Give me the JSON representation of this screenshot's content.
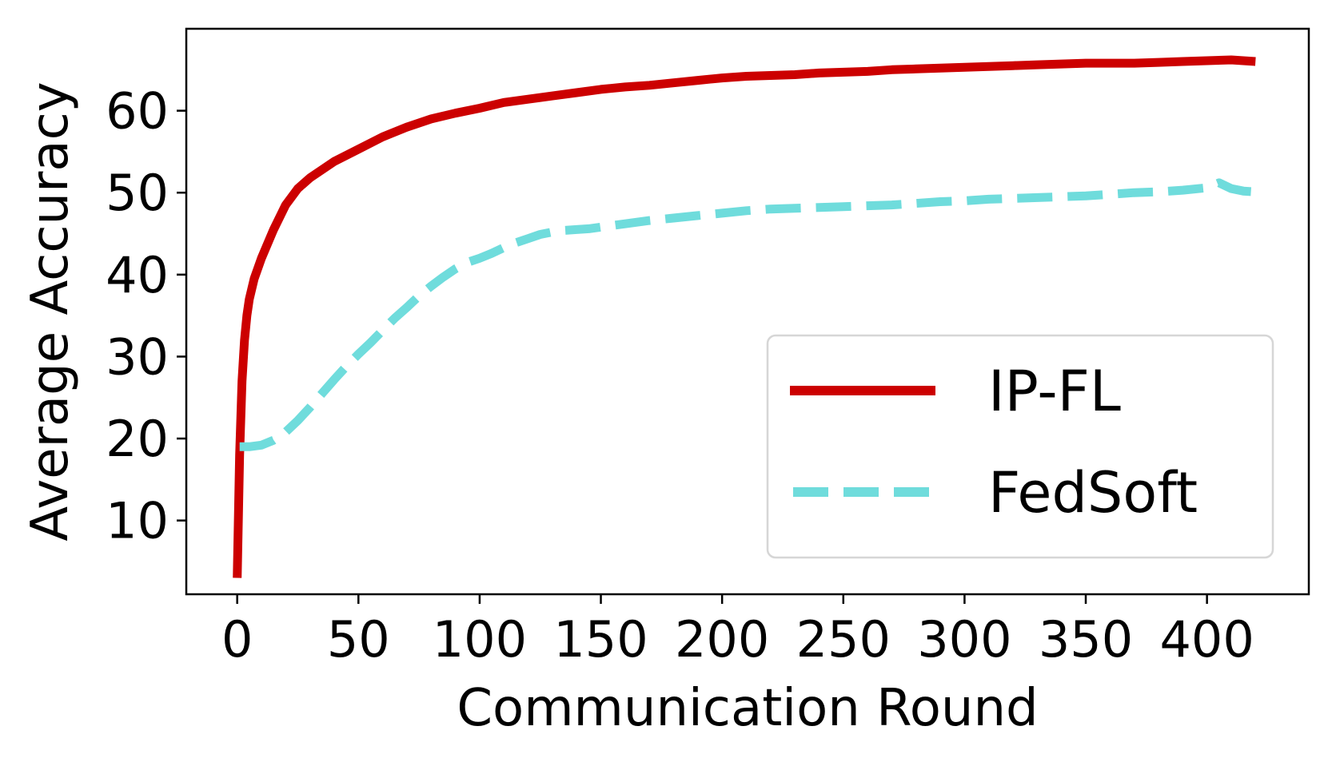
{
  "chart_data": {
    "type": "line",
    "title": "",
    "xlabel": "Communication Round",
    "ylabel": "Average Accuracy",
    "xlim": [
      -21,
      442
    ],
    "ylim": [
      1,
      70
    ],
    "xticks": [
      0,
      50,
      100,
      150,
      200,
      250,
      300,
      350,
      400
    ],
    "yticks": [
      10,
      20,
      30,
      40,
      50,
      60
    ],
    "grid": false,
    "legend_position": "lower-right",
    "series": [
      {
        "name": "IP-FL",
        "color": "#cc0000",
        "style": "solid",
        "x": [
          0,
          1,
          2,
          3,
          4,
          5,
          7,
          10,
          15,
          20,
          25,
          30,
          40,
          50,
          60,
          70,
          80,
          90,
          100,
          110,
          120,
          130,
          140,
          150,
          160,
          170,
          180,
          190,
          200,
          210,
          220,
          230,
          240,
          250,
          260,
          270,
          280,
          290,
          300,
          310,
          320,
          330,
          340,
          350,
          360,
          370,
          380,
          390,
          400,
          410,
          415,
          420
        ],
        "y": [
          3,
          18,
          27,
          32,
          35,
          37,
          39.5,
          42,
          45.5,
          48.5,
          50.5,
          51.8,
          53.8,
          55.3,
          56.8,
          58,
          59,
          59.7,
          60.3,
          61,
          61.4,
          61.8,
          62.2,
          62.6,
          62.9,
          63.1,
          63.4,
          63.7,
          64,
          64.2,
          64.3,
          64.4,
          64.6,
          64.7,
          64.8,
          65,
          65.1,
          65.2,
          65.3,
          65.4,
          65.5,
          65.6,
          65.7,
          65.8,
          65.8,
          65.8,
          65.9,
          66,
          66.1,
          66.2,
          66.1,
          66
        ]
      },
      {
        "name": "FedSoft",
        "color": "#6fdcdc",
        "style": "dashed",
        "x": [
          1,
          5,
          10,
          15,
          20,
          25,
          30,
          35,
          40,
          45,
          50,
          55,
          60,
          65,
          70,
          75,
          80,
          85,
          90,
          95,
          100,
          105,
          110,
          115,
          120,
          125,
          130,
          135,
          140,
          145,
          150,
          160,
          170,
          180,
          190,
          200,
          210,
          220,
          230,
          240,
          250,
          260,
          270,
          280,
          290,
          300,
          310,
          320,
          330,
          340,
          350,
          360,
          370,
          380,
          390,
          400,
          405,
          410,
          415,
          420
        ],
        "y": [
          19,
          19,
          19.2,
          19.8,
          20.8,
          22.2,
          23.8,
          25.5,
          27.2,
          28.8,
          30.3,
          31.7,
          33.2,
          34.7,
          36,
          37.4,
          38.6,
          39.7,
          40.7,
          41.5,
          42,
          42.6,
          43.3,
          43.9,
          44.4,
          44.9,
          45.2,
          45.4,
          45.5,
          45.6,
          45.8,
          46.2,
          46.6,
          46.9,
          47.2,
          47.5,
          47.8,
          48,
          48.1,
          48.2,
          48.3,
          48.4,
          48.5,
          48.7,
          48.9,
          49,
          49.2,
          49.3,
          49.4,
          49.5,
          49.6,
          49.8,
          50,
          50.1,
          50.3,
          50.6,
          51.2,
          50.5,
          50.2,
          50.1
        ]
      }
    ]
  }
}
